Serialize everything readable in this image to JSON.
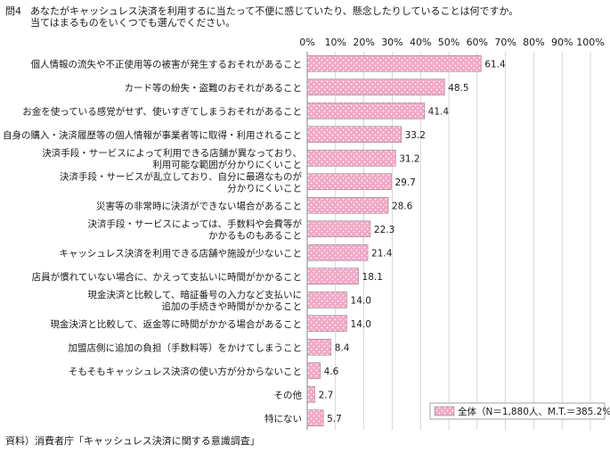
{
  "question": {
    "number": "問4",
    "line1": "あなたがキャッシュレス決済を利用するに当たって不便に感じていたり、懸念したりしていることは何ですか。",
    "line2": "当てはまるものをいくつでも選んでください。"
  },
  "source": "資料）消費者庁「キャッシュレス決済に関する意識調査」",
  "colors": {
    "bar_fill": "#f3a7c7",
    "bar_stroke": "#8a8a8a",
    "dot": "#ffffff",
    "grid": "#bdbdbd"
  },
  "chart_data": {
    "type": "bar",
    "orientation": "horizontal",
    "xlim": [
      0,
      100
    ],
    "xticks": [
      "0%",
      "10%",
      "20%",
      "30%",
      "40%",
      "50%",
      "60%",
      "70%",
      "80%",
      "90%",
      "100%"
    ],
    "grid": true,
    "legend_position": "bottom-right",
    "series": [
      {
        "name": "全体（N＝1,880人、M.T.＝385.2%）",
        "values": [
          61.4,
          48.5,
          41.4,
          33.2,
          31.2,
          29.7,
          28.6,
          22.3,
          21.4,
          18.1,
          14.0,
          14.0,
          8.4,
          4.6,
          2.7,
          5.7
        ],
        "value_labels": [
          "61.4",
          "48.5",
          "41.4",
          "33.2",
          "31.2",
          "29.7",
          "28.6",
          "22.3",
          "21.4",
          "18.1",
          "14.0",
          "14.0",
          "8.4",
          "4.6",
          "2.7",
          "5.7"
        ]
      }
    ],
    "categories": [
      [
        "個人情報の流失や不正使用等の被害が発生するおそれがあること"
      ],
      [
        "カード等の紛失・盗難のおそれがあること"
      ],
      [
        "お金を使っている感覚がせず、使いすぎてしまうおそれがあること"
      ],
      [
        "自身の購入・決済履歴等の個人情報が事業者等に取得・利用されること"
      ],
      [
        "決済手段・サービスによって利用できる店舗が異なっており、",
        "利用可能な範囲が分かりにくいこと"
      ],
      [
        "決済手段・サービスが乱立しており、自分に最適なものが",
        "分かりにくいこと"
      ],
      [
        "災害等の非常時に決済ができない場合があること"
      ],
      [
        "決済手段・サービスによっては、手数料や会費等が",
        "かかるものもあること"
      ],
      [
        "キャッシュレス決済を利用できる店舗や施設が少ないこと"
      ],
      [
        "店員が慣れていない場合に、かえって支払いに時間がかかること"
      ],
      [
        "現金決済と比較して、暗証番号の入力など支払いに",
        "追加の手続きや時間がかかること"
      ],
      [
        "現金決済と比較して、返金等に時間がかかる場合があること"
      ],
      [
        "加盟店側に追加の負担（手数料等）をかけてしまうこと"
      ],
      [
        "そもそもキャッシュレス決済の使い方が分からないこと"
      ],
      [
        "その他"
      ],
      [
        "特にない"
      ]
    ]
  }
}
